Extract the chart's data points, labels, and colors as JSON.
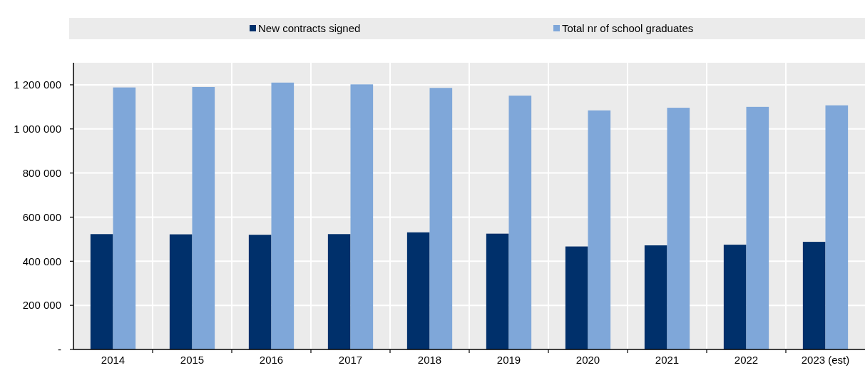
{
  "chart_data": {
    "type": "bar",
    "categories": [
      "2014",
      "2015",
      "2016",
      "2017",
      "2018",
      "2019",
      "2020",
      "2021",
      "2022",
      "2023 (est)"
    ],
    "series": [
      {
        "name": "New contracts signed",
        "color": "#00306b",
        "values": [
          523000,
          522000,
          520000,
          523000,
          531000,
          525000,
          467000,
          472000,
          475000,
          488000
        ]
      },
      {
        "name": "Total nr of school graduates",
        "color": "#7fa7d9",
        "values": [
          1188000,
          1190000,
          1210000,
          1202000,
          1186000,
          1151000,
          1084000,
          1096000,
          1100000,
          1107000
        ]
      }
    ],
    "ylim": [
      0,
      1300000
    ],
    "yticks": [
      {
        "value": 0,
        "label": "-"
      },
      {
        "value": 200000,
        "label": "200 000"
      },
      {
        "value": 400000,
        "label": "400 000"
      },
      {
        "value": 600000,
        "label": "600 000"
      },
      {
        "value": 800000,
        "label": "800 000"
      },
      {
        "value": 1000000,
        "label": "1 000 000"
      },
      {
        "value": 1200000,
        "label": "1 200 000"
      }
    ],
    "grid": true,
    "legend": "top"
  }
}
